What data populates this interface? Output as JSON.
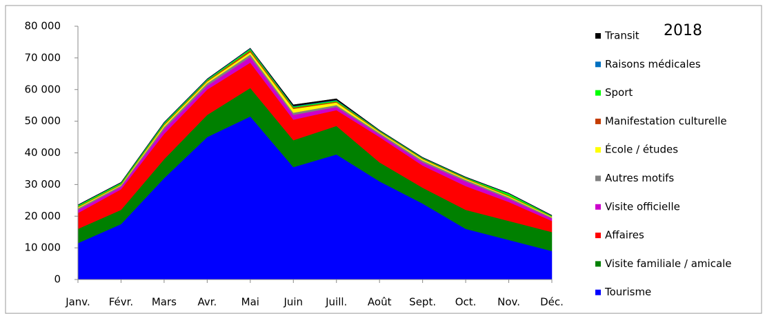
{
  "chart_data": {
    "type": "stacked_area",
    "title": "2018",
    "categories": [
      "Janv.",
      "Févr.",
      "Mars",
      "Avr.",
      "Mai",
      "Juin",
      "Juill.",
      "Août",
      "Sept.",
      "Oct.",
      "Nov.",
      "Déc."
    ],
    "series": [
      {
        "name": "Tourisme",
        "color": "#0000ff",
        "values": [
          11500,
          17500,
          32000,
          45000,
          51500,
          35500,
          39500,
          31000,
          24000,
          16000,
          12500,
          9000
        ]
      },
      {
        "name": "Visite familiale / amicale",
        "color": "#008000",
        "values": [
          4500,
          4500,
          6000,
          7000,
          9000,
          8500,
          9000,
          6000,
          5000,
          6000,
          6000,
          6000
        ]
      },
      {
        "name": "Affaires",
        "color": "#ff0000",
        "values": [
          5000,
          6500,
          8000,
          8000,
          8000,
          6500,
          5000,
          8000,
          7000,
          7500,
          6000,
          3500
        ]
      },
      {
        "name": "Visite officielle",
        "color": "#cc00cc",
        "values": [
          1000,
          800,
          1500,
          1200,
          1800,
          1500,
          1000,
          800,
          1000,
          1500,
          1000,
          800
        ]
      },
      {
        "name": "Autres motifs",
        "color": "#808080",
        "values": [
          500,
          400,
          700,
          800,
          800,
          700,
          600,
          500,
          600,
          500,
          500,
          300
        ]
      },
      {
        "name": "École / études",
        "color": "#ffff00",
        "values": [
          300,
          200,
          500,
          500,
          700,
          1200,
          800,
          300,
          400,
          300,
          300,
          200
        ]
      },
      {
        "name": "Manifestation culturelle",
        "color": "#c43c00",
        "values": [
          200,
          200,
          300,
          300,
          600,
          400,
          300,
          200,
          200,
          200,
          200,
          100
        ]
      },
      {
        "name": "Sport",
        "color": "#00ff00",
        "values": [
          400,
          400,
          400,
          300,
          400,
          300,
          300,
          200,
          200,
          200,
          600,
          200
        ]
      },
      {
        "name": "Raisons médicales",
        "color": "#0070c0",
        "values": [
          100,
          100,
          200,
          200,
          200,
          200,
          200,
          100,
          100,
          100,
          100,
          100
        ]
      },
      {
        "name": "Transit",
        "color": "#000000",
        "values": [
          100,
          100,
          100,
          100,
          100,
          400,
          400,
          100,
          100,
          100,
          100,
          100
        ]
      }
    ],
    "ylim": [
      0,
      80000
    ],
    "yticks": [
      0,
      {
        "value": 10000,
        "label": "10 000"
      },
      {
        "value": 20000,
        "label": "20 000"
      },
      {
        "value": 30000,
        "label": "30 000"
      },
      {
        "value": 40000,
        "label": "40 000"
      },
      {
        "value": 50000,
        "label": "50 000"
      },
      {
        "value": 60000,
        "label": "60 000"
      },
      {
        "value": 70000,
        "label": "70 000"
      },
      {
        "value": 80000,
        "label": "80 000"
      }
    ],
    "legend": "right"
  }
}
